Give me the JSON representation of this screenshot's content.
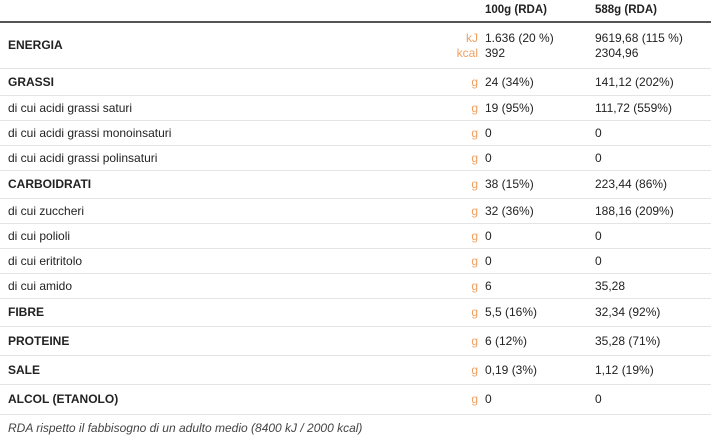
{
  "table": {
    "header": [
      "100g (RDA)",
      "588g (RDA)"
    ],
    "rows": [
      {
        "label": "ENERGIA",
        "units": [
          "kJ",
          "kcal"
        ],
        "per100g": [
          "1.636 (20 %)",
          "392"
        ],
        "per588g": [
          "9619,68 (115 %)",
          "2304,96"
        ]
      },
      {
        "label": "GRASSI",
        "units": [
          "g"
        ],
        "per100g": [
          "24 (34%)"
        ],
        "per588g": [
          "141,12 (202%)"
        ]
      },
      {
        "label": "di cui acidi grassi saturi",
        "units": [
          "g"
        ],
        "per100g": [
          "19 (95%)"
        ],
        "per588g": [
          "111,72  (559%)"
        ]
      },
      {
        "label": "di cui acidi grassi monoinsaturi",
        "units": [
          "g"
        ],
        "per100g": [
          "0"
        ],
        "per588g": [
          "0"
        ]
      },
      {
        "label": "di cui acidi grassi polinsaturi",
        "units": [
          "g"
        ],
        "per100g": [
          "0"
        ],
        "per588g": [
          "0"
        ]
      },
      {
        "label": "CARBOIDRATI",
        "units": [
          "g"
        ],
        "per100g": [
          "38 (15%)"
        ],
        "per588g": [
          "223,44 (86%)"
        ]
      },
      {
        "label": "di cui zuccheri",
        "units": [
          "g"
        ],
        "per100g": [
          "32 (36%)"
        ],
        "per588g": [
          "188,16 (209%)"
        ]
      },
      {
        "label": "di cui polioli",
        "units": [
          "g"
        ],
        "per100g": [
          "0"
        ],
        "per588g": [
          "0"
        ]
      },
      {
        "label": "di cui eritritolo",
        "units": [
          "g"
        ],
        "per100g": [
          "0"
        ],
        "per588g": [
          "0"
        ]
      },
      {
        "label": "di cui amido",
        "units": [
          "g"
        ],
        "per100g": [
          "6"
        ],
        "per588g": [
          "35,28"
        ]
      },
      {
        "label": "FIBRE",
        "units": [
          "g"
        ],
        "per100g": [
          "5,5 (16%)"
        ],
        "per588g": [
          "32,34 (92%)"
        ]
      },
      {
        "label": "PROTEINE",
        "units": [
          "g"
        ],
        "per100g": [
          "6 (12%)"
        ],
        "per588g": [
          "35,28 (71%)"
        ]
      },
      {
        "label": "SALE",
        "units": [
          "g"
        ],
        "per100g": [
          "0,19 (3%)"
        ],
        "per588g": [
          "1,12 (19%)"
        ]
      },
      {
        "label": "ALCOL (ETANOLO)",
        "units": [
          "g"
        ],
        "per100g": [
          "0"
        ],
        "per588g": [
          "0"
        ]
      }
    ],
    "footnote": "RDA rispetto il fabbisogno di un adulto medio (8400 kJ / 2000 kcal)"
  }
}
